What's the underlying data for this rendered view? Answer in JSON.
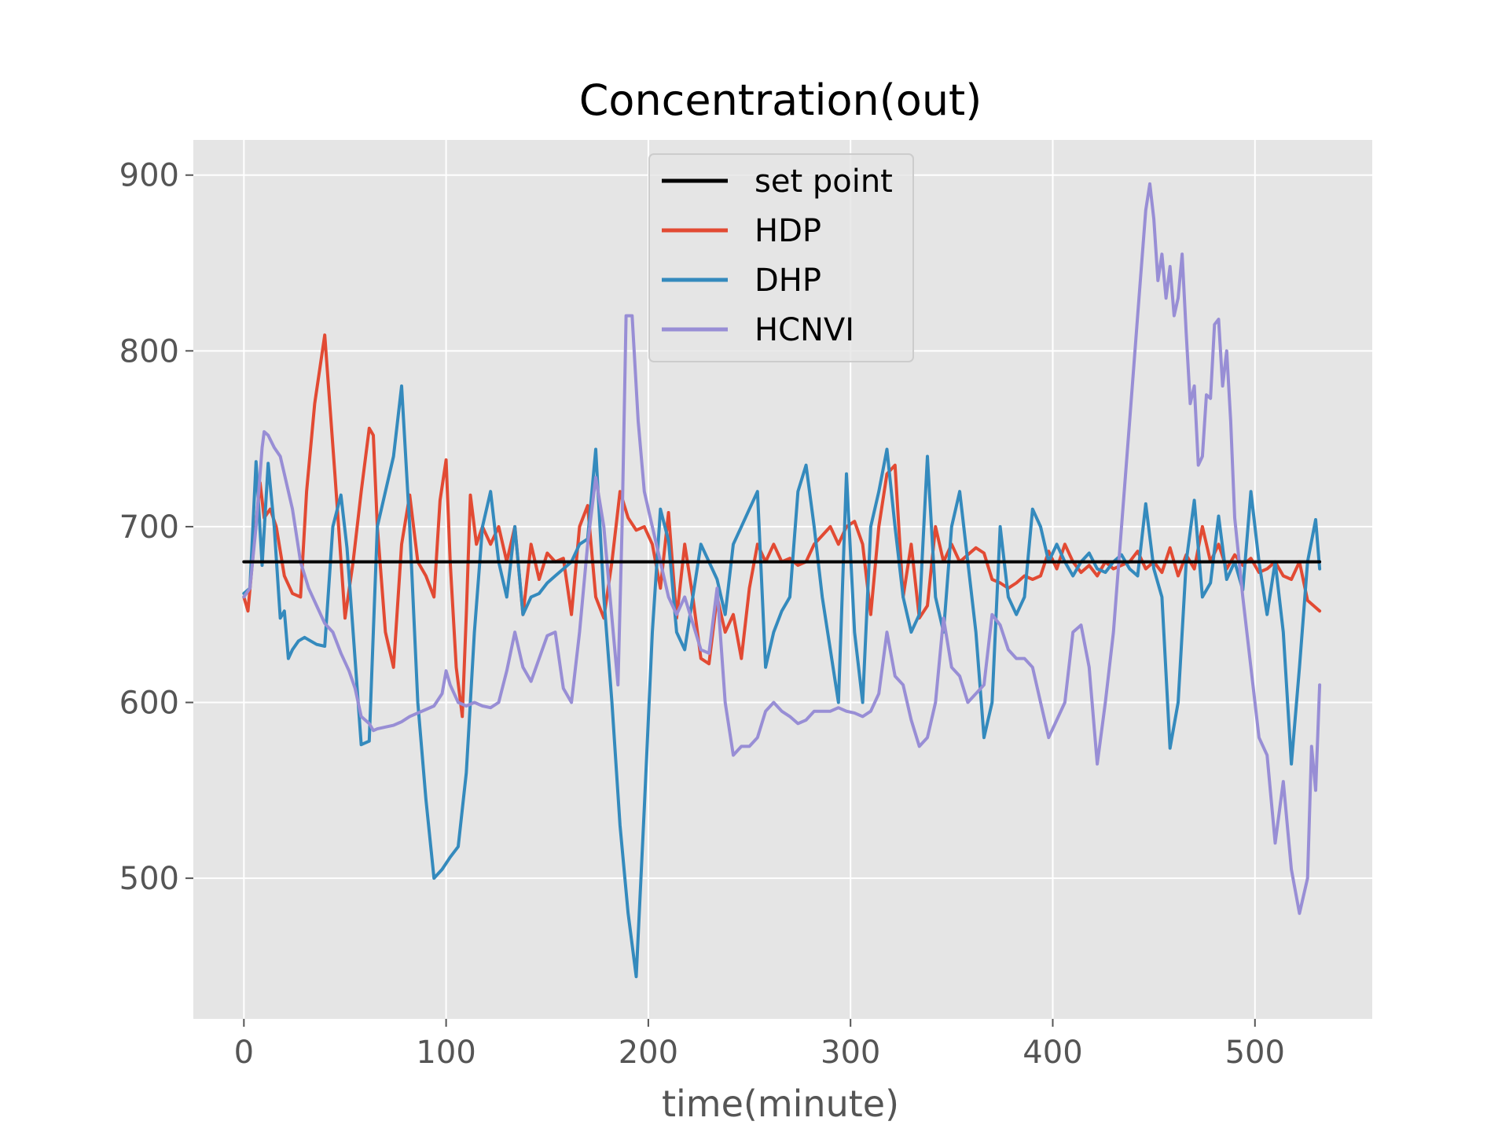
{
  "chart_data": {
    "type": "line",
    "title": "Concentration(out)",
    "xlabel": "time(minute)",
    "ylabel": "",
    "xlim": [
      -25,
      558
    ],
    "ylim": [
      420,
      920
    ],
    "xticks": [
      0,
      100,
      200,
      300,
      400,
      500
    ],
    "yticks": [
      500,
      600,
      700,
      800,
      900
    ],
    "grid": true,
    "background": "#e5e5e5",
    "legend_position": "top-center",
    "series": [
      {
        "name": "set point",
        "color": "#000000",
        "x": [
          0,
          532
        ],
        "y": [
          680,
          680
        ]
      },
      {
        "name": "HDP",
        "color": "#e24a33",
        "x": [
          0,
          2,
          5,
          8,
          10,
          13,
          16,
          20,
          24,
          28,
          31,
          35,
          40,
          45,
          50,
          54,
          58,
          62,
          64,
          66,
          70,
          74,
          78,
          82,
          86,
          90,
          94,
          97,
          100,
          102,
          105,
          108,
          110,
          112,
          115,
          118,
          122,
          126,
          130,
          134,
          138,
          142,
          146,
          150,
          154,
          158,
          162,
          166,
          170,
          174,
          178,
          182,
          186,
          190,
          194,
          198,
          202,
          206,
          210,
          214,
          218,
          222,
          226,
          230,
          234,
          238,
          242,
          246,
          250,
          254,
          258,
          262,
          266,
          270,
          274,
          278,
          282,
          286,
          290,
          294,
          298,
          302,
          306,
          310,
          314,
          318,
          322,
          326,
          330,
          334,
          338,
          342,
          346,
          350,
          354,
          358,
          362,
          366,
          370,
          374,
          378,
          382,
          386,
          390,
          394,
          398,
          402,
          406,
          410,
          414,
          418,
          422,
          426,
          430,
          434,
          438,
          442,
          446,
          450,
          454,
          458,
          462,
          466,
          470,
          474,
          478,
          482,
          486,
          490,
          494,
          498,
          502,
          506,
          510,
          514,
          518,
          522,
          526,
          530,
          532
        ],
        "y": [
          660,
          652,
          690,
          725,
          705,
          710,
          700,
          672,
          662,
          660,
          720,
          770,
          809,
          730,
          648,
          680,
          720,
          756,
          752,
          700,
          640,
          620,
          690,
          718,
          680,
          672,
          660,
          715,
          738,
          680,
          620,
          592,
          650,
          718,
          690,
          700,
          690,
          700,
          680,
          700,
          650,
          690,
          670,
          685,
          680,
          682,
          650,
          700,
          712,
          660,
          648,
          680,
          720,
          705,
          698,
          700,
          690,
          665,
          708,
          648,
          690,
          660,
          625,
          622,
          660,
          640,
          650,
          625,
          665,
          690,
          680,
          690,
          680,
          682,
          678,
          680,
          690,
          695,
          700,
          690,
          700,
          703,
          690,
          650,
          700,
          730,
          735,
          660,
          690,
          648,
          655,
          700,
          680,
          690,
          680,
          684,
          688,
          685,
          670,
          668,
          665,
          668,
          672,
          670,
          672,
          686,
          676,
          690,
          680,
          674,
          678,
          672,
          680,
          676,
          678,
          680,
          686,
          676,
          680,
          674,
          688,
          672,
          684,
          676,
          700,
          680,
          690,
          676,
          684,
          678,
          682,
          674,
          676,
          680,
          672,
          670,
          680,
          658,
          654,
          652
        ],
        "stroke_width": 4
      },
      {
        "name": "DHP",
        "color": "#348abd",
        "x": [
          0,
          3,
          6,
          9,
          12,
          15,
          18,
          20,
          22,
          24,
          27,
          30,
          33,
          36,
          40,
          44,
          48,
          51,
          54,
          58,
          62,
          64,
          66,
          70,
          74,
          78,
          82,
          86,
          90,
          94,
          98,
          102,
          106,
          110,
          114,
          118,
          122,
          126,
          130,
          134,
          138,
          142,
          146,
          150,
          154,
          158,
          162,
          166,
          170,
          174,
          178,
          182,
          186,
          190,
          194,
          198,
          202,
          206,
          210,
          214,
          218,
          222,
          226,
          230,
          234,
          238,
          242,
          246,
          250,
          254,
          258,
          262,
          266,
          270,
          274,
          278,
          282,
          286,
          290,
          294,
          298,
          302,
          306,
          310,
          314,
          318,
          322,
          326,
          330,
          334,
          338,
          342,
          346,
          350,
          354,
          358,
          362,
          366,
          370,
          374,
          378,
          382,
          386,
          390,
          394,
          398,
          402,
          406,
          410,
          414,
          418,
          422,
          426,
          430,
          434,
          438,
          442,
          446,
          450,
          454,
          458,
          462,
          466,
          470,
          474,
          478,
          482,
          486,
          490,
          494,
          498,
          502,
          506,
          510,
          514,
          518,
          522,
          526,
          530,
          532
        ],
        "y": [
          662,
          665,
          737,
          678,
          736,
          700,
          648,
          652,
          625,
          630,
          635,
          637,
          635,
          633,
          632,
          700,
          718,
          688,
          640,
          576,
          578,
          640,
          700,
          720,
          740,
          780,
          700,
          600,
          545,
          500,
          505,
          512,
          518,
          560,
          640,
          700,
          720,
          680,
          660,
          700,
          650,
          660,
          662,
          668,
          672,
          676,
          680,
          690,
          693,
          744,
          660,
          600,
          530,
          480,
          444,
          540,
          640,
          710,
          692,
          640,
          630,
          660,
          690,
          680,
          670,
          650,
          690,
          700,
          710,
          720,
          620,
          640,
          652,
          660,
          720,
          735,
          700,
          660,
          630,
          600,
          730,
          640,
          600,
          700,
          720,
          744,
          700,
          660,
          640,
          650,
          740,
          660,
          640,
          700,
          720,
          680,
          640,
          580,
          600,
          700,
          660,
          650,
          660,
          710,
          700,
          680,
          690,
          680,
          672,
          680,
          685,
          676,
          674,
          680,
          684,
          676,
          672,
          713,
          676,
          660,
          574,
          600,
          680,
          715,
          660,
          668,
          706,
          670,
          680,
          664,
          720,
          680,
          650,
          680,
          640,
          565,
          620,
          680,
          704,
          676
        ],
        "stroke_width": 4
      },
      {
        "name": "HCNVI",
        "color": "#988ed5",
        "x": [
          0,
          3,
          6,
          9,
          10,
          12,
          15,
          18,
          20,
          24,
          28,
          32,
          36,
          40,
          44,
          48,
          52,
          55,
          58,
          62,
          64,
          66,
          70,
          74,
          78,
          82,
          86,
          90,
          94,
          98,
          100,
          102,
          106,
          110,
          114,
          118,
          122,
          126,
          130,
          134,
          138,
          142,
          146,
          150,
          154,
          158,
          162,
          166,
          170,
          174,
          178,
          182,
          185,
          187,
          189,
          192,
          195,
          198,
          202,
          206,
          210,
          214,
          218,
          222,
          226,
          230,
          234,
          238,
          242,
          246,
          250,
          254,
          258,
          262,
          266,
          270,
          274,
          278,
          282,
          286,
          290,
          294,
          298,
          302,
          306,
          310,
          314,
          318,
          322,
          326,
          330,
          334,
          338,
          342,
          346,
          350,
          354,
          358,
          362,
          366,
          370,
          374,
          378,
          382,
          386,
          390,
          394,
          398,
          402,
          406,
          410,
          414,
          418,
          422,
          426,
          430,
          434,
          438,
          442,
          446,
          448,
          450,
          452,
          454,
          456,
          458,
          460,
          462,
          464,
          466,
          468,
          470,
          472,
          474,
          476,
          478,
          480,
          482,
          484,
          486,
          488,
          490,
          494,
          498,
          502,
          506,
          510,
          514,
          518,
          522,
          526,
          528,
          530,
          532
        ],
        "y": [
          660,
          665,
          700,
          745,
          754,
          752,
          745,
          740,
          730,
          710,
          680,
          665,
          655,
          645,
          640,
          628,
          618,
          608,
          592,
          588,
          584,
          585,
          586,
          587,
          589,
          592,
          594,
          596,
          598,
          605,
          618,
          610,
          600,
          598,
          600,
          598,
          597,
          600,
          618,
          640,
          620,
          612,
          625,
          638,
          640,
          608,
          600,
          640,
          690,
          728,
          700,
          648,
          610,
          700,
          820,
          820,
          760,
          720,
          700,
          680,
          660,
          650,
          660,
          645,
          630,
          628,
          665,
          600,
          570,
          575,
          575,
          580,
          595,
          600,
          595,
          592,
          588,
          590,
          595,
          595,
          595,
          597,
          595,
          594,
          592,
          595,
          605,
          640,
          615,
          610,
          590,
          575,
          580,
          600,
          648,
          620,
          615,
          600,
          605,
          610,
          650,
          644,
          630,
          625,
          625,
          620,
          600,
          580,
          590,
          600,
          640,
          644,
          620,
          565,
          600,
          640,
          700,
          760,
          820,
          880,
          895,
          875,
          840,
          855,
          830,
          848,
          820,
          830,
          855,
          810,
          770,
          780,
          735,
          740,
          775,
          773,
          815,
          818,
          780,
          800,
          760,
          705,
          660,
          620,
          580,
          570,
          520,
          555,
          505,
          480,
          500,
          575,
          550,
          610
        ],
        "stroke_width": 4
      }
    ]
  }
}
